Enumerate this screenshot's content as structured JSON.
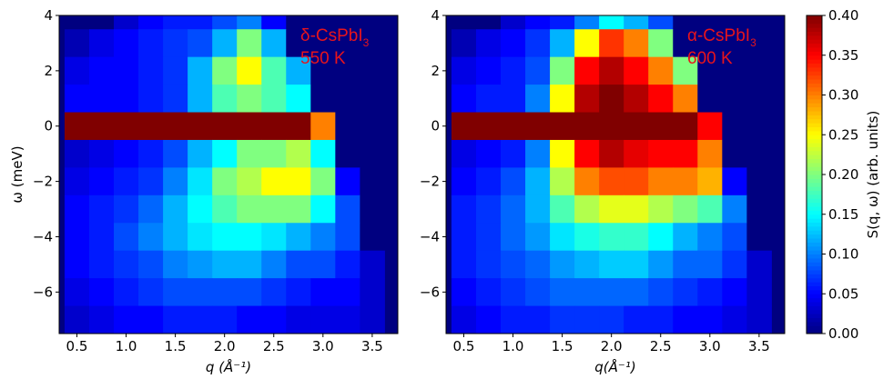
{
  "chart_data": [
    {
      "type": "heatmap",
      "xlabel": "q (Å⁻¹)",
      "ylabel": "ω (meV)",
      "annotation": {
        "text": "δ-CsPbI",
        "subscript": "3",
        "line2": "550 K"
      },
      "xlim": [
        0.32,
        3.76
      ],
      "ylim": [
        -7.5,
        4
      ],
      "xticks": [
        0.5,
        {
          "value": 1.0,
          "label": "1.0"
        },
        1.5,
        {
          "value": 2.0,
          "label": "2.0"
        },
        2.5,
        {
          "value": 3.0,
          "label": "3.0"
        },
        3.5
      ],
      "yticks": [
        {
          "value": -6,
          "label": "−6"
        },
        {
          "value": -4,
          "label": "−4"
        },
        {
          "value": -2,
          "label": "−2"
        },
        0,
        2,
        4
      ],
      "x": [
        0.5,
        0.75,
        1,
        1.25,
        1.5,
        1.75,
        2,
        2.25,
        2.5,
        2.75,
        3,
        3.25,
        3.5
      ],
      "y": [
        4,
        3,
        2,
        1,
        0,
        -1,
        -2,
        -3,
        -4,
        -5,
        -6,
        -7
      ],
      "z": [
        [
          0,
          0,
          0.03,
          0.05,
          0.06,
          0.06,
          0.08,
          0.1,
          0.05,
          0,
          0,
          0,
          0
        ],
        [
          0.02,
          0.04,
          0.05,
          0.06,
          0.07,
          0.08,
          0.12,
          0.2,
          0.12,
          0,
          0,
          0,
          0
        ],
        [
          0.04,
          0.05,
          0.05,
          0.06,
          0.07,
          0.12,
          0.2,
          0.25,
          0.18,
          0.12,
          0,
          0,
          0
        ],
        [
          0.05,
          0.05,
          0.05,
          0.06,
          0.07,
          0.12,
          0.18,
          0.2,
          0.18,
          0.15,
          0,
          0,
          0
        ],
        [
          0.4,
          0.4,
          0.4,
          0.4,
          0.4,
          0.4,
          0.4,
          0.4,
          0.4,
          0.4,
          0.3,
          0,
          0
        ],
        [
          0.03,
          0.04,
          0.05,
          0.06,
          0.08,
          0.12,
          0.15,
          0.2,
          0.2,
          0.22,
          0.15,
          0,
          0
        ],
        [
          0.04,
          0.05,
          0.06,
          0.07,
          0.1,
          0.14,
          0.2,
          0.22,
          0.25,
          0.25,
          0.2,
          0.05,
          0
        ],
        [
          0.05,
          0.06,
          0.07,
          0.09,
          0.12,
          0.15,
          0.18,
          0.2,
          0.2,
          0.2,
          0.15,
          0.08,
          0
        ],
        [
          0.05,
          0.06,
          0.08,
          0.1,
          0.12,
          0.14,
          0.15,
          0.15,
          0.14,
          0.12,
          0.1,
          0.08,
          0
        ],
        [
          0.05,
          0.06,
          0.07,
          0.08,
          0.1,
          0.11,
          0.12,
          0.12,
          0.1,
          0.08,
          0.08,
          0.06,
          0.03
        ],
        [
          0.04,
          0.05,
          0.06,
          0.07,
          0.08,
          0.08,
          0.08,
          0.08,
          0.07,
          0.06,
          0.05,
          0.05,
          0.03
        ],
        [
          0.03,
          0.04,
          0.05,
          0.05,
          0.06,
          0.06,
          0.06,
          0.05,
          0.05,
          0.04,
          0.04,
          0.04,
          0.03
        ]
      ]
    },
    {
      "type": "heatmap",
      "xlabel": "q(Å⁻¹)",
      "annotation": {
        "text": "α-CsPbI",
        "subscript": "3",
        "line2": "600 K"
      },
      "xlim": [
        0.32,
        3.76
      ],
      "ylim": [
        -7.5,
        4
      ],
      "xticks": [
        0.5,
        {
          "value": 1.0,
          "label": "1.0"
        },
        1.5,
        {
          "value": 2.0,
          "label": "2.0"
        },
        2.5,
        {
          "value": 3.0,
          "label": "3.0"
        },
        3.5
      ],
      "yticks": [
        {
          "value": -6,
          "label": "−6"
        },
        {
          "value": -4,
          "label": "−4"
        },
        {
          "value": -2,
          "label": "−2"
        },
        0,
        2,
        4
      ],
      "x": [
        0.5,
        0.75,
        1,
        1.25,
        1.5,
        1.75,
        2,
        2.25,
        2.5,
        2.75,
        3,
        3.25,
        3.5
      ],
      "y": [
        4,
        3,
        2,
        1,
        0,
        -1,
        -2,
        -3,
        -4,
        -5,
        -6,
        -7
      ],
      "z": [
        [
          0,
          0,
          0.03,
          0.05,
          0.06,
          0.1,
          0.15,
          0.12,
          0.08,
          0,
          0,
          0,
          0
        ],
        [
          0.02,
          0.04,
          0.05,
          0.07,
          0.12,
          0.25,
          0.33,
          0.3,
          0.2,
          0,
          0,
          0,
          0
        ],
        [
          0.04,
          0.05,
          0.06,
          0.08,
          0.2,
          0.35,
          0.38,
          0.35,
          0.3,
          0.2,
          0,
          0,
          0
        ],
        [
          0.05,
          0.06,
          0.06,
          0.1,
          0.25,
          0.38,
          0.4,
          0.38,
          0.35,
          0.3,
          0,
          0,
          0
        ],
        [
          0.4,
          0.4,
          0.4,
          0.4,
          0.4,
          0.4,
          0.4,
          0.4,
          0.4,
          0.4,
          0.35,
          0,
          0
        ],
        [
          0.04,
          0.05,
          0.06,
          0.1,
          0.25,
          0.35,
          0.38,
          0.36,
          0.35,
          0.35,
          0.3,
          0,
          0
        ],
        [
          0.05,
          0.06,
          0.08,
          0.12,
          0.22,
          0.3,
          0.32,
          0.32,
          0.3,
          0.3,
          0.28,
          0.05,
          0
        ],
        [
          0.06,
          0.07,
          0.09,
          0.12,
          0.18,
          0.22,
          0.24,
          0.24,
          0.22,
          0.2,
          0.18,
          0.1,
          0
        ],
        [
          0.06,
          0.07,
          0.09,
          0.11,
          0.14,
          0.16,
          0.17,
          0.17,
          0.15,
          0.12,
          0.1,
          0.08,
          0
        ],
        [
          0.06,
          0.07,
          0.08,
          0.09,
          0.11,
          0.12,
          0.13,
          0.13,
          0.11,
          0.09,
          0.09,
          0.07,
          0.03
        ],
        [
          0.05,
          0.06,
          0.07,
          0.08,
          0.09,
          0.09,
          0.09,
          0.09,
          0.08,
          0.07,
          0.06,
          0.05,
          0.03
        ],
        [
          0.04,
          0.05,
          0.06,
          0.06,
          0.07,
          0.07,
          0.07,
          0.06,
          0.06,
          0.05,
          0.05,
          0.04,
          0.03
        ]
      ]
    }
  ],
  "colorbar": {
    "label": "S(q, ω) (arb. units)",
    "cmap": "jet",
    "clim": [
      0,
      0.4
    ],
    "ticks": [
      {
        "value": 0,
        "label": "0.00"
      },
      {
        "value": 0.05,
        "label": "0.05"
      },
      {
        "value": 0.1,
        "label": "0.10"
      },
      {
        "value": 0.15,
        "label": "0.15"
      },
      {
        "value": 0.2,
        "label": "0.20"
      },
      {
        "value": 0.25,
        "label": "0.25"
      },
      {
        "value": 0.3,
        "label": "0.30"
      },
      {
        "value": 0.35,
        "label": "0.35"
      },
      {
        "value": 0.4,
        "label": "0.40"
      }
    ]
  }
}
